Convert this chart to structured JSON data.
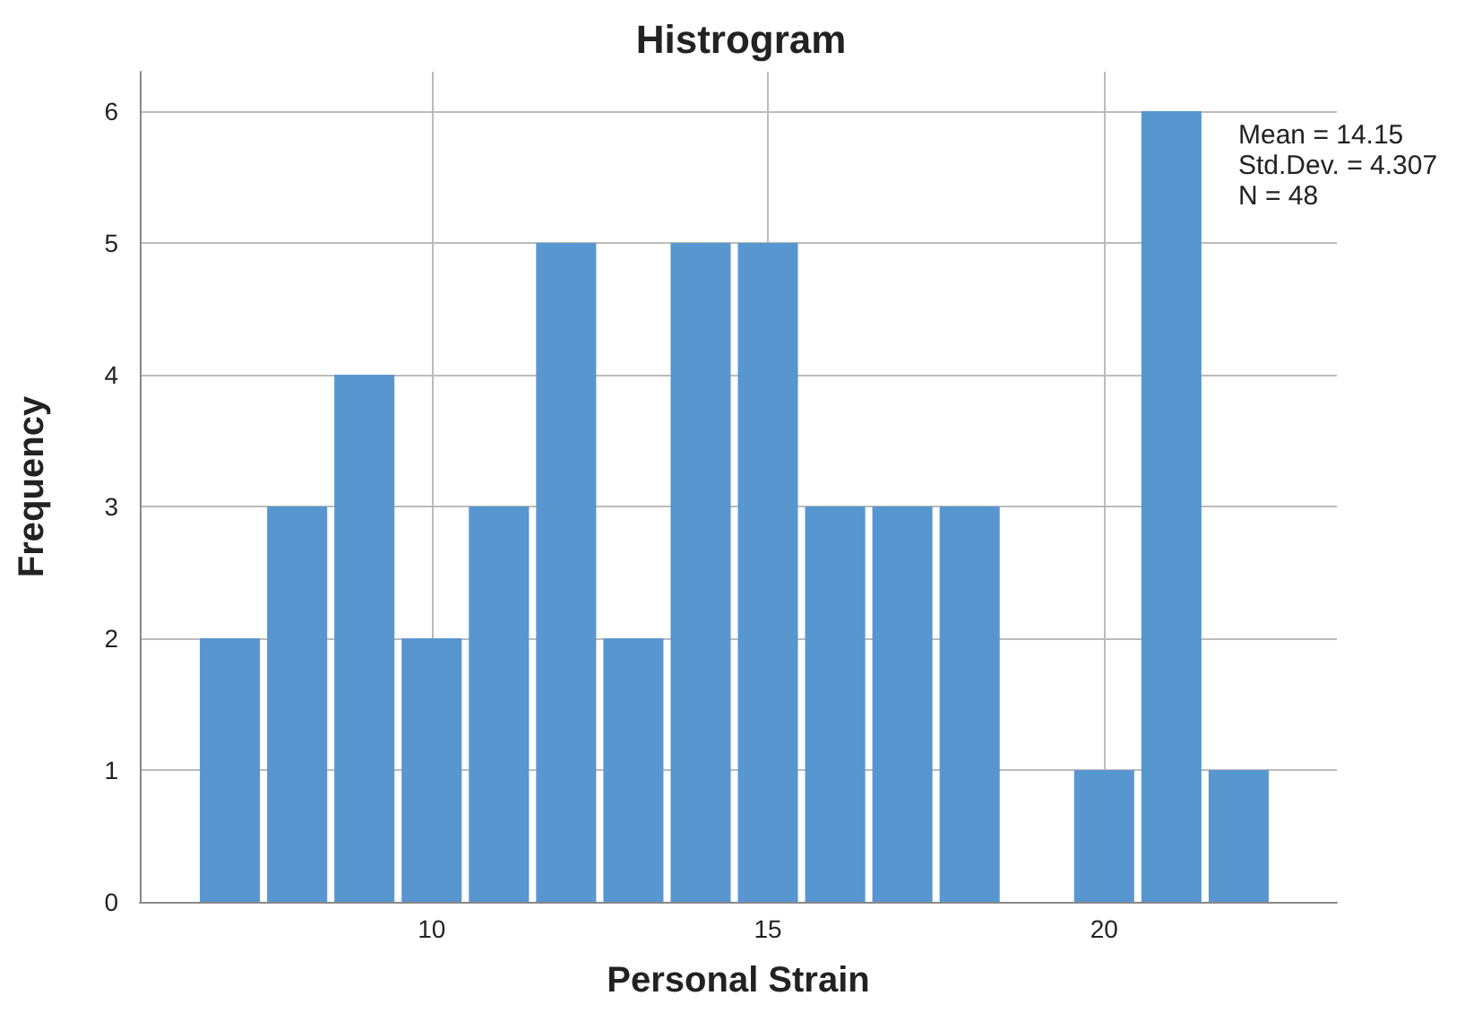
{
  "chart_data": {
    "type": "histogram",
    "title": "Histrogram",
    "xlabel": "Personal Strain",
    "ylabel": "Frequency",
    "bins": [
      6.5,
      7.5,
      8.5,
      9.5,
      10.5,
      11.5,
      12.5,
      13.5,
      14.5,
      15.5,
      16.5,
      17.5,
      18.5,
      19.5,
      20.5,
      21.5,
      22.5
    ],
    "values": [
      2,
      3,
      4,
      2,
      3,
      5,
      2,
      5,
      5,
      3,
      3,
      3,
      0,
      1,
      6,
      1
    ],
    "color": "#5896d0",
    "xlim": [
      5.66,
      23.46
    ],
    "xticks": [
      10,
      15,
      20
    ],
    "ylim": [
      0,
      6.3
    ],
    "yticks": [
      0,
      1,
      2,
      3,
      4,
      5,
      6
    ],
    "grid": true,
    "annotations": [
      "Mean = 14.15",
      "Std.Dev. = 4.307",
      "N = 48"
    ]
  }
}
